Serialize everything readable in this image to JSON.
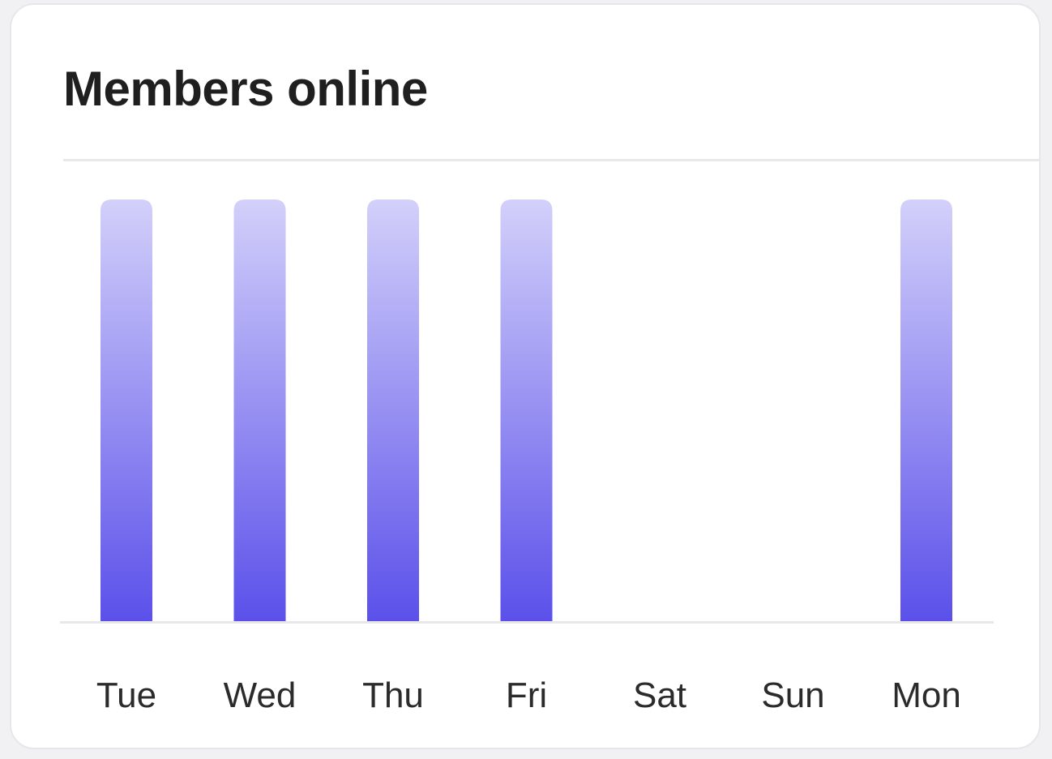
{
  "card": {
    "title": "Members online"
  },
  "chart_data": {
    "type": "bar",
    "title": "Members online",
    "categories": [
      "Tue",
      "Wed",
      "Thu",
      "Fri",
      "Sat",
      "Sun",
      "Mon"
    ],
    "values": [
      1,
      1,
      1,
      1,
      0,
      0,
      1
    ],
    "ylim": [
      0,
      1
    ],
    "xlabel": "",
    "ylabel": "",
    "grid": false,
    "legend": "none",
    "colors": {
      "bar_top": "#d3d0fa",
      "bar_bottom": "#5b50ea",
      "axis": "#e8e8ea",
      "label": "#2b2b2b"
    }
  }
}
